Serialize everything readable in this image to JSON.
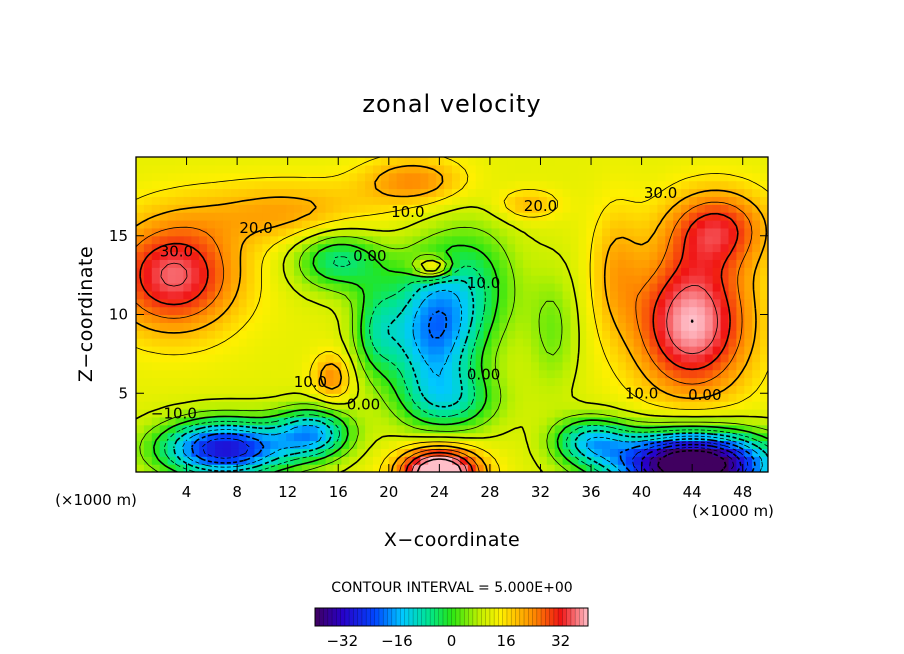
{
  "chart_data": {
    "type": "heatmap",
    "title": "zonal velocity",
    "xlabel": "X−coordinate",
    "ylabel": "Z−coordinate",
    "x_unit_left": "(×1000 m)",
    "x_unit_right": "(×1000 m)",
    "xlim": [
      0,
      50
    ],
    "ylim": [
      0,
      20
    ],
    "x_ticks": [
      4,
      8,
      12,
      16,
      20,
      24,
      28,
      32,
      36,
      40,
      44,
      48
    ],
    "y_ticks": [
      5,
      10,
      15
    ],
    "contour_interval_text": "CONTOUR INTERVAL = 5.000E+00",
    "colorbar": {
      "min": -40,
      "max": 40,
      "ticks": [
        {
          "value": -32,
          "label": "−32"
        },
        {
          "value": -16,
          "label": "−16"
        },
        {
          "value": 0,
          "label": "0"
        },
        {
          "value": 16,
          "label": "16"
        },
        {
          "value": 32,
          "label": "32"
        }
      ]
    },
    "contour_labels": [
      {
        "text": "30.0",
        "x": 3.2,
        "z": 14.0
      },
      {
        "text": "20.0",
        "x": 9.5,
        "z": 15.5
      },
      {
        "text": "10.0",
        "x": 21.5,
        "z": 16.5
      },
      {
        "text": "0.00",
        "x": 18.5,
        "z": 13.7
      },
      {
        "text": "20.0",
        "x": 32.0,
        "z": 16.9
      },
      {
        "text": "30.0",
        "x": 41.5,
        "z": 17.7
      },
      {
        "text": "10.0",
        "x": 27.5,
        "z": 12.0
      },
      {
        "text": "0.00",
        "x": 27.5,
        "z": 6.2
      },
      {
        "text": "10.0",
        "x": 40.0,
        "z": 5.0
      },
      {
        "text": "0.00",
        "x": 45.0,
        "z": 4.9
      },
      {
        "text": "10.0",
        "x": 13.8,
        "z": 5.7
      },
      {
        "text": "0.00",
        "x": 18.0,
        "z": 4.3
      },
      {
        "text": "−10.0",
        "x": 3.0,
        "z": 3.7
      }
    ],
    "field_model": {
      "background": 12,
      "blobs": [
        {
          "x": 3.0,
          "z": 12.5,
          "sx": 5.0,
          "sz": 3.5,
          "v": 24
        },
        {
          "x": 12.0,
          "z": 16.5,
          "sx": 7.0,
          "sz": 2.0,
          "v": 10
        },
        {
          "x": 22.0,
          "z": 18.5,
          "sx": 4.0,
          "sz": 1.5,
          "v": 12
        },
        {
          "x": 44.0,
          "z": 9.5,
          "sx": 4.5,
          "sz": 4.5,
          "v": 28
        },
        {
          "x": 46.0,
          "z": 15.5,
          "sx": 4.0,
          "sz": 2.5,
          "v": 18
        },
        {
          "x": 38.0,
          "z": 13.0,
          "sx": 2.0,
          "sz": 4.0,
          "v": 8
        },
        {
          "x": 23.5,
          "z": 9.0,
          "sx": 3.5,
          "sz": 4.5,
          "v": -30
        },
        {
          "x": 16.0,
          "z": 13.5,
          "sx": 3.5,
          "sz": 2.0,
          "v": -18
        },
        {
          "x": 27.0,
          "z": 12.0,
          "sx": 3.5,
          "sz": 4.0,
          "v": -12
        },
        {
          "x": 19.0,
          "z": 9.0,
          "sx": 2.0,
          "sz": 3.0,
          "v": -14
        },
        {
          "x": 25.0,
          "z": 4.5,
          "sx": 4.0,
          "sz": 2.0,
          "v": -14
        },
        {
          "x": 33.0,
          "z": 9.0,
          "sx": 2.0,
          "sz": 4.0,
          "v": -8
        },
        {
          "x": 7.0,
          "z": 1.5,
          "sx": 5.0,
          "sz": 1.8,
          "v": -42
        },
        {
          "x": 14.0,
          "z": 2.5,
          "sx": 3.0,
          "sz": 1.6,
          "v": -26
        },
        {
          "x": 44.0,
          "z": 0.5,
          "sx": 6.0,
          "sz": 2.0,
          "v": -64
        },
        {
          "x": 36.0,
          "z": 2.0,
          "sx": 3.0,
          "sz": 1.5,
          "v": -22
        },
        {
          "x": 24.0,
          "z": 0.0,
          "sx": 3.0,
          "sz": 1.5,
          "v": 40
        },
        {
          "x": 15.5,
          "z": 6.0,
          "sx": 1.5,
          "sz": 1.5,
          "v": 12
        },
        {
          "x": 23.5,
          "z": 13.0,
          "sx": 1.5,
          "sz": 0.7,
          "v": 20
        },
        {
          "x": 31.0,
          "z": 17.0,
          "sx": 2.5,
          "sz": 1.0,
          "v": 8
        }
      ]
    }
  }
}
